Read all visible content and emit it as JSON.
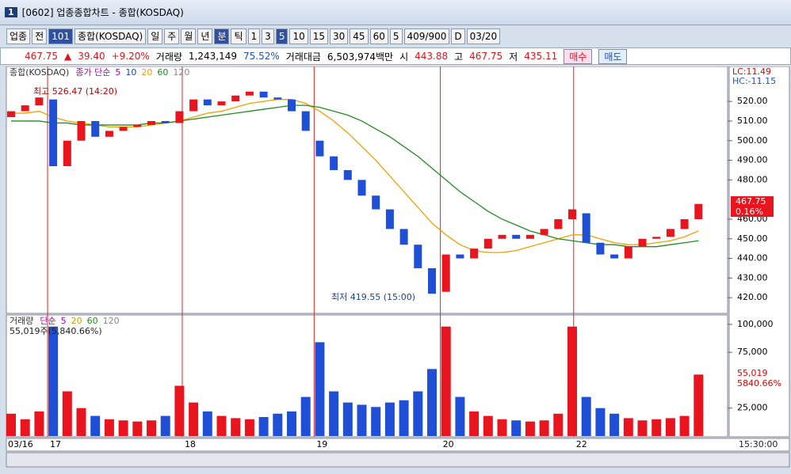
{
  "window": {
    "badge": "1",
    "title": "[0602] 업종종합차트 - 종합(KOSDAQ)"
  },
  "toolbar": {
    "market": "업종",
    "scope": "전",
    "code": "101",
    "name": "종합(KOSDAQ)",
    "periods": [
      "일",
      "주",
      "월",
      "년",
      "분",
      "틱"
    ],
    "minutes": [
      "1",
      "3",
      "5",
      "10",
      "15",
      "30",
      "45",
      "60"
    ],
    "count": "5",
    "range": "409/900",
    "date_flag": "D",
    "date": "03/20"
  },
  "quote": {
    "price": "467.75",
    "arrow": "▲",
    "change": "39.40",
    "rate": "+9.20%",
    "vol_label": "거래량",
    "volume": "1,243,149",
    "vol_rate": "75.52%",
    "amt_label": "거래대금",
    "amount": "6,503,974백만",
    "open_label": "시",
    "open": "443.88",
    "high_label": "고",
    "high": "467.75",
    "low_label": "저",
    "low": "435.11",
    "buy": "매수",
    "sell": "매도"
  },
  "chart_data": [
    {
      "type": "candlestick",
      "title": "종합(KOSDAQ)",
      "ma_label": "종가 단순",
      "up_color": "#e8141e",
      "down_color": "#1f4fd6",
      "open": [
        512,
        515,
        518,
        521,
        487,
        500,
        510,
        502,
        505,
        507,
        508,
        510,
        509,
        515,
        521,
        518,
        520,
        523,
        525,
        522,
        521,
        515,
        500,
        492,
        485,
        480,
        472,
        465,
        455,
        447,
        435,
        423,
        442,
        440,
        445,
        450,
        452,
        450,
        452,
        455,
        460,
        463,
        448,
        442,
        440,
        446,
        450,
        451,
        455,
        460
      ],
      "close": [
        515,
        518,
        522,
        487,
        500,
        510,
        502,
        505,
        507,
        508,
        510,
        509,
        515,
        521,
        518,
        520,
        523,
        525,
        522,
        521,
        515,
        505,
        492,
        485,
        480,
        472,
        465,
        455,
        447,
        435,
        422,
        442,
        440,
        445,
        450,
        452,
        450,
        452,
        455,
        460,
        465,
        448,
        442,
        440,
        446,
        450,
        451,
        455,
        460,
        467.75
      ],
      "series": [
        {
          "name": "5",
          "color": "#b000b0"
        },
        {
          "name": "10",
          "color": "#1a3fb0"
        },
        {
          "name": "20",
          "color": "#f0a000",
          "values": [
            514,
            514,
            515,
            512,
            510,
            509,
            508,
            507,
            507,
            507,
            508,
            509,
            510,
            512,
            514,
            515,
            517,
            519,
            520,
            521,
            521,
            519,
            515,
            510,
            504,
            497,
            490,
            482,
            474,
            466,
            458,
            452,
            447,
            444,
            443,
            443,
            444,
            446,
            448,
            450,
            452,
            452,
            450,
            448,
            447,
            447,
            448,
            449,
            451,
            454
          ]
        },
        {
          "name": "60",
          "color": "#228b22",
          "values": [
            510,
            510,
            510,
            509,
            509,
            508,
            508,
            508,
            508,
            508,
            509,
            509,
            510,
            511,
            512,
            513,
            514,
            515,
            516,
            517,
            518,
            518,
            517,
            515,
            513,
            510,
            506,
            502,
            497,
            492,
            486,
            480,
            474,
            469,
            464,
            460,
            457,
            454,
            452,
            450,
            449,
            448,
            447,
            447,
            446,
            446,
            446,
            447,
            448,
            449
          ]
        },
        {
          "name": "120",
          "color": "#888888"
        }
      ],
      "ylim": [
        412,
        537
      ],
      "yticks": [
        {
          "value": 420,
          "label": "420.00"
        },
        {
          "value": 430,
          "label": "430.00"
        },
        {
          "value": 440,
          "label": "440.00"
        },
        {
          "value": 450,
          "label": "450.00"
        },
        {
          "value": 460,
          "label": "460.00"
        },
        {
          "value": 480,
          "label": "480.00"
        },
        {
          "value": 490,
          "label": "490.00"
        },
        {
          "value": 500,
          "label": "500.00"
        },
        {
          "value": 510,
          "label": "510.00"
        },
        {
          "value": 520,
          "label": "520.00"
        }
      ],
      "xticks": [
        {
          "value": 0,
          "label": "03/16"
        },
        {
          "value": 2.6,
          "label": "17"
        },
        {
          "value": 12.2,
          "label": "18"
        },
        {
          "value": 21.6,
          "label": "19"
        },
        {
          "value": 30.6,
          "label": "20"
        },
        {
          "value": 40.1,
          "label": "22"
        }
      ],
      "max_label": "최고 526.47 (14:20)",
      "min_label": "최저 419.55 (15:00)",
      "lc": "LC:11.49",
      "hc": "HC:-11.15",
      "last_label": "467.75",
      "last_rate": "0.16%"
    },
    {
      "type": "volume",
      "title": "거래량",
      "ma_label": "단순",
      "values": [
        20000,
        15000,
        22000,
        98000,
        40000,
        25000,
        18000,
        15000,
        14000,
        13000,
        14000,
        18000,
        45000,
        30000,
        22000,
        18000,
        16000,
        15000,
        17000,
        20000,
        22000,
        35000,
        84000,
        40000,
        30000,
        28000,
        26000,
        30000,
        32000,
        40000,
        60000,
        98000,
        35000,
        22000,
        18000,
        15000,
        14000,
        13000,
        14000,
        20000,
        98000,
        35000,
        25000,
        20000,
        16000,
        14000,
        15000,
        16000,
        18000,
        55019
      ],
      "series": [
        {
          "name": "5",
          "color": "#b000b0"
        },
        {
          "name": "20",
          "color": "#c8a000"
        },
        {
          "name": "60",
          "color": "#228b22"
        },
        {
          "name": "120",
          "color": "#888888"
        }
      ],
      "ylim": [
        0,
        107000
      ],
      "yticks": [
        {
          "value": 25000,
          "label": "25,000"
        },
        {
          "value": 75000,
          "label": "75,000"
        },
        {
          "value": 100000,
          "label": "100,000"
        }
      ],
      "info": "55,019주(5,840.66%)",
      "last_label": "55,019",
      "last_rate": "5840.66%",
      "time": "15:30:00"
    }
  ]
}
